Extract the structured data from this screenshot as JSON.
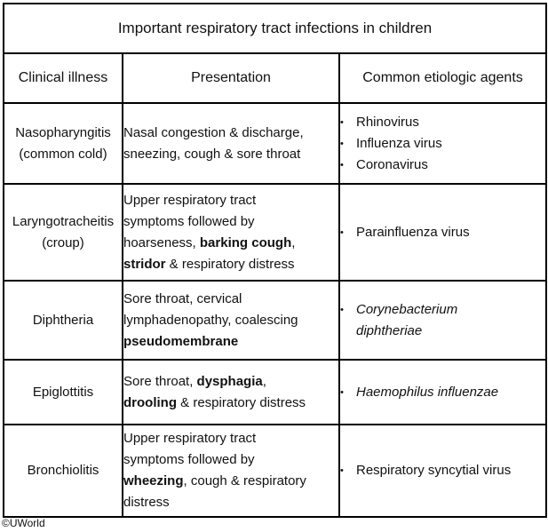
{
  "title": "Important respiratory tract infections in children",
  "headers": {
    "illness": "Clinical illness",
    "presentation": "Presentation",
    "agents": "Common etiologic agents"
  },
  "rows": [
    {
      "illness_line1": "Nasopharyngitis",
      "illness_line2": "(common cold)",
      "presentation": {
        "l1": "Nasal congestion & discharge,",
        "l2": "sneezing, cough & sore throat"
      },
      "agents": [
        "Rhinovirus",
        "Influenza virus",
        "Coronavirus"
      ]
    },
    {
      "illness_line1": "Laryngotracheitis",
      "illness_line2": "(croup)",
      "presentation": {
        "l1": "Upper respiratory tract",
        "l2": "symptoms followed by",
        "l3a": "hoarseness, ",
        "l3b": "barking cough",
        "l3c": ",",
        "l4a": "stridor",
        "l4b": " & respiratory distress"
      },
      "agents": [
        "Parainfluenza virus"
      ]
    },
    {
      "illness_line1": "Diphtheria",
      "presentation": {
        "l1": "Sore throat, cervical",
        "l2": "lymphadenopathy, coalescing",
        "l3": "pseudomembrane"
      },
      "agents": [
        "Corynebacterium",
        "diphtheriae"
      ]
    },
    {
      "illness_line1": "Epiglottitis",
      "presentation": {
        "l1a": "Sore throat, ",
        "l1b": "dysphagia",
        "l1c": ",",
        "l2a": "drooling",
        "l2b": " & respiratory distress"
      },
      "agents": [
        "Haemophilus influenzae"
      ]
    },
    {
      "illness_line1": "Bronchiolitis",
      "presentation": {
        "l1": "Upper respiratory tract",
        "l2": "symptoms followed by",
        "l3a": "wheezing",
        "l3b": ", cough & respiratory",
        "l4": "distress"
      },
      "agents": [
        "Respiratory syncytial virus"
      ]
    }
  ],
  "bullet": "•",
  "copyright": "©UWorld"
}
